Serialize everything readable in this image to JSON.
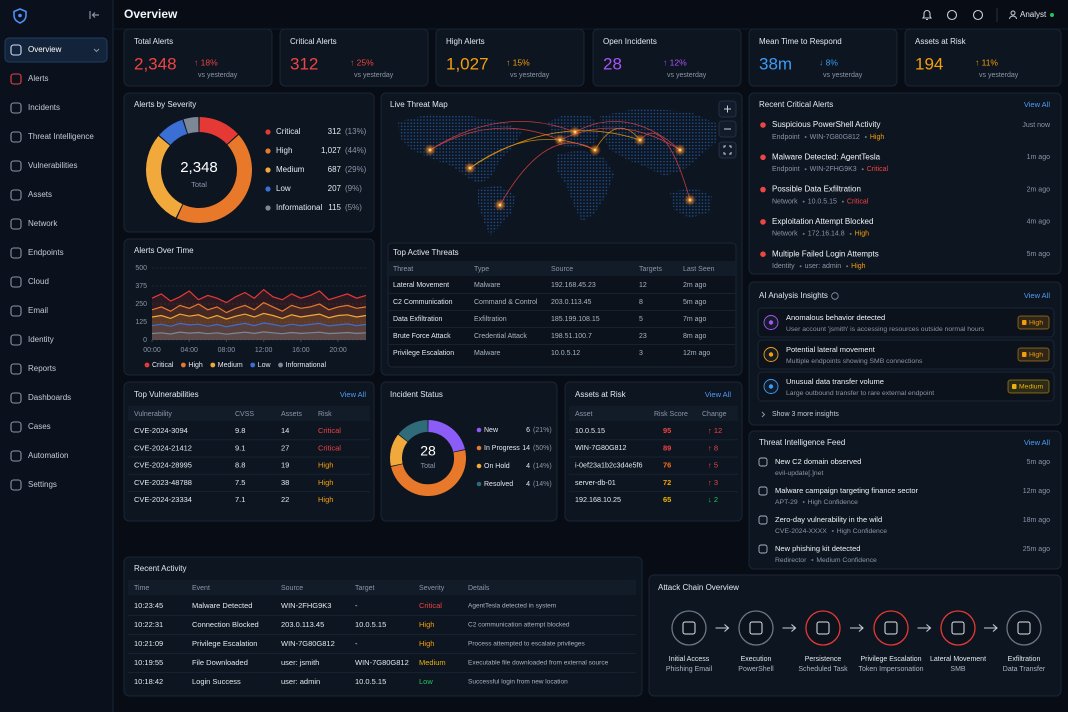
{
  "sidebar": {
    "items": [
      "Overview",
      "Alerts",
      "Incidents",
      "Threat Intelligence",
      "Vulnerabilities",
      "Assets",
      "Network",
      "Endpoints",
      "Cloud",
      "Email",
      "Identity",
      "Reports",
      "Dashboards",
      "Cases",
      "Automation",
      "Settings"
    ]
  },
  "header": {
    "title": "Overview",
    "user": "Analyst"
  },
  "severity_colors": {
    "Critical": "#ef4444",
    "High": "#f59e0b",
    "Medium": "#eab308",
    "Low": "#22c55e"
  },
  "kpis": [
    {
      "label": "Total Alerts",
      "value": "2,348",
      "change": "↑ 18%",
      "note": "vs yesterday",
      "color": "#ef4444"
    },
    {
      "label": "Critical Alerts",
      "value": "312",
      "change": "↑ 25%",
      "note": "vs yesterday",
      "color": "#ef4444"
    },
    {
      "label": "High Alerts",
      "value": "1,027",
      "change": "↑ 15%",
      "note": "vs yesterday",
      "color": "#f59e0b"
    },
    {
      "label": "Open Incidents",
      "value": "28",
      "change": "↑ 12%",
      "note": "vs yesterday",
      "color": "#a855f7"
    },
    {
      "label": "Mean Time to Respond",
      "value": "38m",
      "change": "↓ 8%",
      "note": "vs yesterday",
      "color": "#3b9cf6"
    },
    {
      "label": "Assets at Risk",
      "value": "194",
      "change": "↑ 11%",
      "note": "vs yesterday",
      "color": "#f59e0b"
    }
  ],
  "severity": {
    "title": "Alerts by Severity",
    "total": "2,348",
    "total_label": "Total",
    "items": [
      {
        "name": "Critical",
        "value": 312,
        "share": "(13%)",
        "color": "#e53935"
      },
      {
        "name": "High",
        "value": 1027,
        "label": "1,027",
        "share": "(44%)",
        "color": "#e8792a"
      },
      {
        "name": "Medium",
        "value": 687,
        "share": "(29%)",
        "color": "#f2a93b"
      },
      {
        "name": "Low",
        "value": 207,
        "share": "(9%)",
        "color": "#3b6fd4"
      },
      {
        "name": "Informational",
        "value": 115,
        "share": "(5%)",
        "color": "#7c8798"
      }
    ]
  },
  "alerts_over_time": {
    "type": "line",
    "title": "Alerts Over Time",
    "x": [
      0,
      1,
      2,
      3,
      4,
      5,
      6,
      7,
      8,
      9,
      10,
      11,
      12,
      13,
      14,
      15,
      16,
      17,
      18,
      19,
      20,
      21,
      22,
      23
    ],
    "xlim": [
      0,
      23
    ],
    "xticks": [
      {
        "value": 0,
        "label": "00:00"
      },
      {
        "value": 4,
        "label": "04:00"
      },
      {
        "value": 8,
        "label": "08:00"
      },
      {
        "value": 12,
        "label": "12:00"
      },
      {
        "value": 16,
        "label": "16:00"
      },
      {
        "value": 20,
        "label": "20:00"
      }
    ],
    "ylim": [
      0,
      500
    ],
    "yticks": [
      0,
      125,
      250,
      375,
      500
    ],
    "series": [
      {
        "name": "Critical",
        "color": "#e53935",
        "values": [
          290,
          320,
          270,
          300,
          340,
          280,
          310,
          290,
          260,
          300,
          330,
          290,
          350,
          300,
          280,
          320,
          290,
          310,
          340,
          280,
          300,
          320,
          290,
          310
        ]
      },
      {
        "name": "High",
        "color": "#e8792a",
        "values": [
          210,
          230,
          200,
          240,
          220,
          250,
          210,
          230,
          190,
          220,
          240,
          210,
          260,
          230,
          200,
          240,
          220,
          230,
          250,
          210,
          230,
          240,
          220,
          230
        ]
      },
      {
        "name": "Medium",
        "color": "#f2a93b",
        "values": [
          160,
          170,
          150,
          180,
          165,
          175,
          150,
          170,
          145,
          165,
          180,
          160,
          185,
          170,
          150,
          175,
          160,
          170,
          180,
          155,
          170,
          175,
          160,
          170
        ]
      },
      {
        "name": "Low",
        "color": "#3b6fd4",
        "values": [
          100,
          110,
          95,
          115,
          105,
          110,
          95,
          108,
          92,
          105,
          115,
          100,
          118,
          108,
          95,
          110,
          100,
          108,
          115,
          98,
          105,
          112,
          100,
          108
        ]
      },
      {
        "name": "Informational",
        "color": "#7c8798",
        "values": [
          45,
          50,
          42,
          55,
          48,
          52,
          44,
          50,
          40,
          48,
          54,
          46,
          56,
          50,
          44,
          52,
          46,
          50,
          54,
          45,
          48,
          52,
          46,
          50
        ]
      }
    ]
  },
  "threat_map": {
    "title": "Live Threat Map"
  },
  "top_threats": {
    "title": "Top Active Threats",
    "columns": [
      "Threat",
      "Type",
      "Source",
      "Targets",
      "Last Seen"
    ],
    "rows": [
      [
        "Lateral Movement",
        "Malware",
        "192.168.45.23",
        "12",
        "2m ago"
      ],
      [
        "C2 Communication",
        "Command & Control",
        "203.0.113.45",
        "8",
        "5m ago"
      ],
      [
        "Data Exfiltration",
        "Exfiltration",
        "185.199.108.15",
        "5",
        "7m ago"
      ],
      [
        "Brute Force Attack",
        "Credential Attack",
        "198.51.100.7",
        "23",
        "8m ago"
      ],
      [
        "Privilege Escalation",
        "Malware",
        "10.0.5.12",
        "3",
        "12m ago"
      ]
    ]
  },
  "critical_alerts": {
    "title": "Recent Critical Alerts",
    "link": "View All",
    "items": [
      {
        "title": "Suspicious PowerShell Activity",
        "category": "Endpoint",
        "target": "WIN-7G80G812",
        "severity": "High",
        "time": "Just now"
      },
      {
        "title": "Malware Detected: AgentTesla",
        "category": "Endpoint",
        "target": "WIN-2FHG9K3",
        "severity": "Critical",
        "time": "1m ago"
      },
      {
        "title": "Possible Data Exfiltration",
        "category": "Network",
        "target": "10.0.5.15",
        "severity": "Critical",
        "time": "2m ago"
      },
      {
        "title": "Exploitation Attempt Blocked",
        "category": "Network",
        "target": "172.16.14.8",
        "severity": "High",
        "time": "4m ago"
      },
      {
        "title": "Multiple Failed Login Attempts",
        "category": "Identity",
        "target": "user: admin",
        "severity": "High",
        "time": "5m ago"
      }
    ]
  },
  "ai_insights": {
    "title": "AI Analysis Insights",
    "link": "View All",
    "footer": "Show 3 more insights",
    "items": [
      {
        "title": "Anomalous behavior detected",
        "description": "User account 'jsmith' is accessing resources outside normal hours",
        "severity": "High"
      },
      {
        "title": "Potential lateral movement",
        "description": "Multiple endpoints showing SMB connections",
        "severity": "High"
      },
      {
        "title": "Unusual data transfer volume",
        "description": "Large outbound transfer to rare external endpoint",
        "severity": "Medium"
      }
    ]
  },
  "vulnerabilities": {
    "title": "Top Vulnerabilities",
    "link": "View All",
    "columns": [
      "Vulnerability",
      "CVSS",
      "Assets",
      "Risk"
    ],
    "rows": [
      [
        "CVE-2024-3094",
        "9.8",
        "14",
        "Critical"
      ],
      [
        "CVE-2024-21412",
        "9.1",
        "27",
        "Critical"
      ],
      [
        "CVE-2024-28995",
        "8.8",
        "19",
        "High"
      ],
      [
        "CVE-2023-48788",
        "7.5",
        "38",
        "High"
      ],
      [
        "CVE-2024-23334",
        "7.1",
        "22",
        "High"
      ]
    ]
  },
  "incident_status": {
    "title": "Incident Status",
    "total": "28",
    "total_label": "Total",
    "items": [
      {
        "name": "New",
        "value": 6,
        "share": "(21%)",
        "color": "#8b5cf6"
      },
      {
        "name": "In Progress",
        "value": 14,
        "share": "(50%)",
        "color": "#e8792a"
      },
      {
        "name": "On Hold",
        "value": 4,
        "share": "(14%)",
        "color": "#f2a93b"
      },
      {
        "name": "Resolved",
        "value": 4,
        "share": "(14%)",
        "color": "#2f6b78"
      }
    ]
  },
  "assets_at_risk": {
    "title": "Assets at Risk",
    "link": "View All",
    "columns": [
      "Asset",
      "Risk Score",
      "Change"
    ],
    "rows": [
      {
        "asset": "10.0.5.15",
        "score": "95",
        "change": "↑ 12",
        "color": "#ef4444"
      },
      {
        "asset": "WIN-7G80G812",
        "score": "89",
        "change": "↑ 8",
        "color": "#ef4444"
      },
      {
        "asset": "i-0ef23a1b2c3d4e5f6",
        "score": "76",
        "change": "↑ 5",
        "color": "#f97316"
      },
      {
        "asset": "server-db-01",
        "score": "72",
        "change": "↑ 3",
        "color": "#f59e0b"
      },
      {
        "asset": "192.168.10.25",
        "score": "65",
        "change": "↓ 2",
        "color": "#eab308"
      }
    ]
  },
  "intel_feed": {
    "title": "Threat Intelligence Feed",
    "link": "View All",
    "items": [
      {
        "title": "New C2 domain observed",
        "meta": [
          "evil-update[.]net"
        ],
        "time": "5m ago"
      },
      {
        "title": "Malware campaign targeting finance sector",
        "meta": [
          "APT-29",
          "High Confidence"
        ],
        "time": "12m ago"
      },
      {
        "title": "Zero-day vulnerability in the wild",
        "meta": [
          "CVE-2024-XXXX",
          "High Confidence"
        ],
        "time": "18m ago"
      },
      {
        "title": "New phishing kit detected",
        "meta": [
          "Redirector",
          "Medium Confidence"
        ],
        "time": "25m ago"
      }
    ]
  },
  "recent_activity": {
    "title": "Recent Activity",
    "columns": [
      "Time",
      "Event",
      "Source",
      "Target",
      "Severity",
      "Details"
    ],
    "rows": [
      [
        "10:23:45",
        "Malware Detected",
        "WIN-2FHG9K3",
        "-",
        "Critical",
        "AgentTesla detected in system"
      ],
      [
        "10:22:31",
        "Connection Blocked",
        "203.0.113.45",
        "10.0.5.15",
        "High",
        "C2 communication attempt blocked"
      ],
      [
        "10:21:09",
        "Privilege Escalation",
        "WIN-7G80G812",
        "-",
        "High",
        "Process attempted to escalate privileges"
      ],
      [
        "10:19:55",
        "File Downloaded",
        "user: jsmith",
        "WIN-7G80G812",
        "Medium",
        "Executable file downloaded from external source"
      ],
      [
        "10:18:42",
        "Login Success",
        "user: admin",
        "10.0.5.15",
        "Low",
        "Successful login from new location"
      ]
    ]
  },
  "attack_chain": {
    "title": "Attack Chain Overview",
    "steps": [
      {
        "name": "Initial Access",
        "detail": "Phishing Email",
        "color": "#6b7686"
      },
      {
        "name": "Execution",
        "detail": "PowerShell",
        "color": "#6b7686"
      },
      {
        "name": "Persistence",
        "detail": "Scheduled Task",
        "color": "#e53935"
      },
      {
        "name": "Privilege Escalation",
        "detail": "Token Impersonation",
        "color": "#e53935"
      },
      {
        "name": "Lateral Movement",
        "detail": "SMB",
        "color": "#e53935"
      },
      {
        "name": "Exfiltration",
        "detail": "Data Transfer",
        "color": "#6b7686"
      }
    ]
  }
}
